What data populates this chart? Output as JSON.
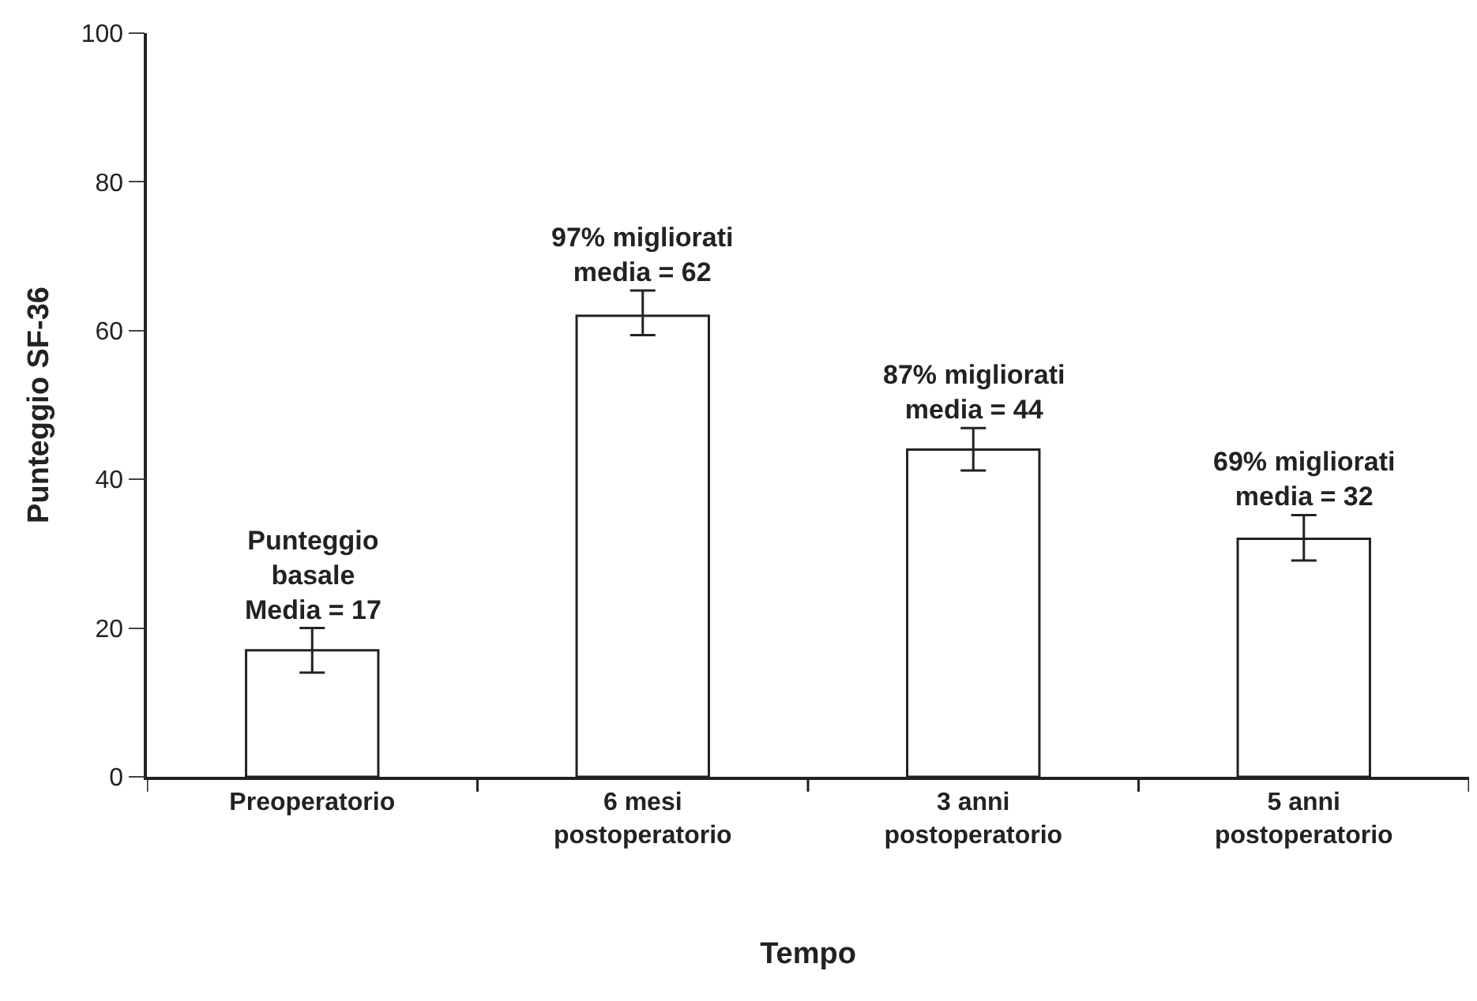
{
  "chart_data": {
    "type": "bar",
    "categories": [
      "Preoperatorio",
      "6 mesi\npostoperatorio",
      "3 anni\npostoperatorio",
      "5 anni\npostoperatorio"
    ],
    "values": [
      17,
      62,
      44,
      32
    ],
    "errors": [
      [
        14,
        20
      ],
      [
        59.4,
        65.4
      ],
      [
        41.2,
        46.9
      ],
      [
        29.1,
        35.2
      ]
    ],
    "value_labels": [
      "Punteggio\nbasale\nMedia = 17",
      "97% migliorati\nmedia = 62",
      "87% migliorati\nmedia = 44",
      "69% migliorati\nmedia = 32"
    ],
    "color": "#ffffff",
    "xlabel": "Tempo",
    "ylabel": "Punteggio SF-36",
    "ylim": [
      0,
      100
    ],
    "yticks": [
      0,
      20,
      40,
      60,
      80,
      100
    ]
  }
}
